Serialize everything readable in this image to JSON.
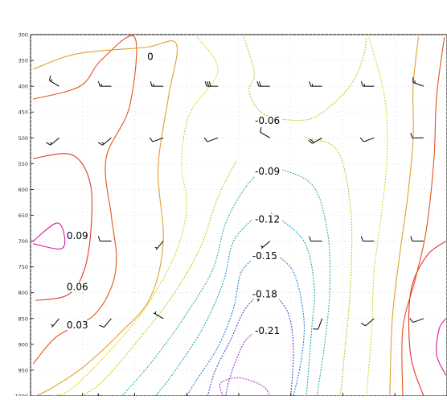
{
  "chart_data": {
    "type": "contour",
    "title": "",
    "xlabel": "",
    "ylabel": "",
    "y_axis": {
      "kind": "pressure",
      "inverted": true,
      "ylim": [
        300,
        1000
      ],
      "ticks": [
        300,
        350,
        400,
        450,
        500,
        550,
        600,
        650,
        700,
        750,
        800,
        850,
        900,
        950,
        1000
      ],
      "tick_labels": [
        "300",
        "350",
        "400",
        "450",
        "500",
        "550",
        "600",
        "650",
        "700",
        "750",
        "800",
        "850",
        "900",
        "950",
        "1000"
      ]
    },
    "x_axis": {
      "ticks": [
        0,
        1,
        2,
        3,
        4,
        5,
        6,
        7,
        8
      ],
      "tick_labels": [
        "",
        "",
        "",
        "",
        "",
        "",
        "",
        "",
        ""
      ]
    },
    "grid": "dotted",
    "contour_labels": [
      {
        "text": "0",
        "x": 2.3,
        "y": 343
      },
      {
        "text": "-0.06",
        "x": 4.55,
        "y": 467
      },
      {
        "text": "-0.09",
        "x": 4.55,
        "y": 565
      },
      {
        "text": "-0.12",
        "x": 4.55,
        "y": 658
      },
      {
        "text": "-0.15",
        "x": 4.5,
        "y": 729
      },
      {
        "text": "-0.18",
        "x": 4.5,
        "y": 803
      },
      {
        "text": "-0.21",
        "x": 4.55,
        "y": 874
      },
      {
        "text": "0.09",
        "x": 0.9,
        "y": 690
      },
      {
        "text": "0.06",
        "x": 0.9,
        "y": 789
      },
      {
        "text": "0.03",
        "x": 0.9,
        "y": 863
      }
    ],
    "contours": [
      {
        "level": 0.09,
        "color": "#d8189c",
        "points": [
          [
            0.05,
            700
          ],
          [
            0.5,
            665
          ],
          [
            0.65,
            690
          ],
          [
            0.58,
            715
          ],
          [
            0.05,
            705
          ]
        ]
      },
      {
        "level": 0.06,
        "color": "#e03530",
        "points": [
          [
            0.05,
            540
          ],
          [
            0.8,
            533
          ],
          [
            1.15,
            590
          ],
          [
            1.15,
            690
          ],
          [
            1.0,
            765
          ],
          [
            0.7,
            805
          ],
          [
            0.1,
            815
          ]
        ]
      },
      {
        "level": 0.03,
        "color": "#e4531a",
        "points": [
          [
            0.05,
            425
          ],
          [
            0.95,
            400
          ],
          [
            1.35,
            350
          ],
          [
            2.0,
            305
          ],
          [
            1.9,
            440
          ],
          [
            1.45,
            540
          ],
          [
            1.55,
            650
          ],
          [
            1.65,
            730
          ],
          [
            1.55,
            790
          ],
          [
            1.2,
            845
          ],
          [
            0.5,
            885
          ],
          [
            0.05,
            938
          ]
        ]
      },
      {
        "level": 0.0,
        "color": "#e0a030",
        "points": [
          [
            0.05,
            367
          ],
          [
            0.9,
            337
          ],
          [
            2.2,
            325
          ],
          [
            2.8,
            318
          ],
          [
            2.65,
            420
          ],
          [
            2.45,
            560
          ],
          [
            2.55,
            700
          ],
          [
            2.3,
            810
          ],
          [
            1.7,
            880
          ],
          [
            1.0,
            945
          ],
          [
            0.4,
            985
          ],
          [
            0.1,
            1000
          ]
        ]
      },
      {
        "level": -0.03,
        "color": "#d8d628",
        "points": [
          [
            3.2,
            305
          ],
          [
            3.6,
            370
          ],
          [
            3.05,
            455
          ],
          [
            2.9,
            550
          ],
          [
            3.0,
            630
          ],
          [
            2.8,
            720
          ],
          [
            2.2,
            830
          ],
          [
            1.5,
            915
          ],
          [
            0.8,
            985
          ],
          [
            0.45,
            1000
          ]
        ]
      },
      {
        "level": -0.06,
        "color": "#a8d620",
        "points": [
          [
            4.1,
            305
          ],
          [
            4.3,
            375
          ],
          [
            4.2,
            410
          ],
          [
            4.5,
            455
          ],
          [
            5.3,
            465
          ],
          [
            5.8,
            435
          ],
          [
            6.2,
            390
          ],
          [
            6.4,
            340
          ],
          [
            6.45,
            305
          ]
        ]
      },
      {
        "level": -0.06,
        "color": "#a8d620",
        "points": [
          [
            3.95,
            545
          ],
          [
            3.6,
            615
          ],
          [
            3.25,
            715
          ],
          [
            2.7,
            810
          ],
          [
            2.0,
            900
          ],
          [
            1.4,
            970
          ],
          [
            1.0,
            1000
          ]
        ]
      },
      {
        "level": -0.09,
        "color": "#3ab088",
        "points": [
          [
            4.45,
            560
          ],
          [
            4.1,
            600
          ],
          [
            3.75,
            665
          ],
          [
            3.5,
            755
          ],
          [
            3.0,
            840
          ],
          [
            2.4,
            925
          ],
          [
            1.8,
            995
          ],
          [
            1.7,
            1000
          ]
        ]
      },
      {
        "level": -0.12,
        "color": "#1ca6b4",
        "points": [
          [
            4.35,
            650
          ],
          [
            3.9,
            700
          ],
          [
            3.7,
            780
          ],
          [
            3.3,
            870
          ],
          [
            2.75,
            955
          ],
          [
            2.4,
            1000
          ]
        ]
      },
      {
        "level": -0.15,
        "color": "#2a7ed0",
        "points": [
          [
            4.4,
            725
          ],
          [
            4.05,
            760
          ],
          [
            3.9,
            830
          ],
          [
            3.6,
            905
          ],
          [
            3.15,
            975
          ],
          [
            3.0,
            1000
          ]
        ]
      },
      {
        "level": -0.18,
        "color": "#5a44c8",
        "points": [
          [
            4.4,
            800
          ],
          [
            4.1,
            835
          ],
          [
            3.85,
            890
          ],
          [
            3.55,
            950
          ],
          [
            3.4,
            1000
          ]
        ]
      },
      {
        "level": -0.21,
        "color": "#8a34c8",
        "points": [
          [
            4.42,
            872
          ],
          [
            4.15,
            890
          ],
          [
            3.95,
            930
          ],
          [
            3.8,
            975
          ],
          [
            3.75,
            1000
          ]
        ]
      },
      {
        "level": -0.24,
        "color": "#b42cc0",
        "points": [
          [
            3.7,
            1000
          ],
          [
            3.65,
            975
          ],
          [
            4.0,
            965
          ],
          [
            4.45,
            980
          ],
          [
            4.6,
            1000
          ]
        ]
      },
      {
        "level": -0.18,
        "color": "#5a44c8",
        "points": [
          [
            4.62,
            795
          ],
          [
            4.95,
            840
          ],
          [
            5.05,
            910
          ],
          [
            5.0,
            1000
          ]
        ]
      },
      {
        "level": -0.15,
        "color": "#2a7ed0",
        "points": [
          [
            4.62,
            720
          ],
          [
            5.05,
            760
          ],
          [
            5.25,
            850
          ],
          [
            5.2,
            930
          ],
          [
            5.05,
            1000
          ]
        ]
      },
      {
        "level": -0.12,
        "color": "#1ca6b4",
        "points": [
          [
            4.62,
            645
          ],
          [
            5.25,
            700
          ],
          [
            5.45,
            790
          ],
          [
            5.4,
            870
          ],
          [
            5.3,
            1000
          ]
        ]
      },
      {
        "level": -0.09,
        "color": "#3ab088",
        "points": [
          [
            4.62,
            555
          ],
          [
            5.4,
            590
          ],
          [
            5.7,
            680
          ],
          [
            5.75,
            790
          ],
          [
            5.65,
            900
          ],
          [
            5.5,
            1000
          ]
        ]
      },
      {
        "level": -0.06,
        "color": "#a8d620",
        "points": [
          [
            5.3,
            500
          ],
          [
            5.9,
            525
          ],
          [
            6.15,
            640
          ],
          [
            6.15,
            780
          ],
          [
            6.05,
            900
          ],
          [
            5.95,
            1000
          ]
        ]
      },
      {
        "level": -0.03,
        "color": "#d8d628",
        "points": [
          [
            6.5,
            305
          ],
          [
            6.8,
            420
          ],
          [
            6.85,
            530
          ],
          [
            6.75,
            640
          ],
          [
            6.6,
            760
          ],
          [
            6.55,
            880
          ],
          [
            6.45,
            1000
          ]
        ]
      },
      {
        "level": 0.0,
        "color": "#e0a030",
        "points": [
          [
            7.45,
            305
          ],
          [
            7.35,
            400
          ],
          [
            7.35,
            500
          ],
          [
            7.25,
            610
          ],
          [
            7.1,
            720
          ],
          [
            6.95,
            850
          ],
          [
            6.9,
            1000
          ]
        ]
      },
      {
        "level": 0.03,
        "color": "#e4531a",
        "points": [
          [
            7.95,
            305
          ],
          [
            7.8,
            420
          ],
          [
            7.75,
            540
          ],
          [
            7.6,
            680
          ],
          [
            7.4,
            770
          ],
          [
            7.15,
            870
          ],
          [
            7.15,
            1000
          ]
        ]
      },
      {
        "level": 0.06,
        "color": "#e03530",
        "points": [
          [
            7.98,
            700
          ],
          [
            7.6,
            730
          ],
          [
            7.3,
            800
          ],
          [
            7.3,
            920
          ],
          [
            7.55,
            1000
          ]
        ]
      },
      {
        "level": 0.09,
        "color": "#d8189c",
        "points": [
          [
            7.98,
            850
          ],
          [
            7.85,
            870
          ],
          [
            7.8,
            920
          ],
          [
            7.98,
            960
          ]
        ]
      }
    ],
    "wind_barbs": [
      {
        "x": 0.55,
        "y": 400,
        "dir": 300,
        "speed": 15
      },
      {
        "x": 1.55,
        "y": 400,
        "dir": 270,
        "speed": 15
      },
      {
        "x": 2.55,
        "y": 400,
        "dir": 270,
        "speed": 15
      },
      {
        "x": 3.6,
        "y": 400,
        "dir": 270,
        "speed": 30
      },
      {
        "x": 4.6,
        "y": 400,
        "dir": 270,
        "speed": 20
      },
      {
        "x": 5.6,
        "y": 400,
        "dir": 270,
        "speed": 15
      },
      {
        "x": 6.6,
        "y": 400,
        "dir": 270,
        "speed": 15
      },
      {
        "x": 7.55,
        "y": 400,
        "dir": 290,
        "speed": 15
      },
      {
        "x": 0.55,
        "y": 500,
        "dir": 230,
        "speed": 15
      },
      {
        "x": 1.55,
        "y": 500,
        "dir": 230,
        "speed": 15
      },
      {
        "x": 2.55,
        "y": 500,
        "dir": 250,
        "speed": 10
      },
      {
        "x": 3.6,
        "y": 500,
        "dir": 250,
        "speed": 10
      },
      {
        "x": 4.6,
        "y": 500,
        "dir": 300,
        "speed": 10
      },
      {
        "x": 5.6,
        "y": 500,
        "dir": 240,
        "speed": 20
      },
      {
        "x": 6.6,
        "y": 500,
        "dir": 250,
        "speed": 10
      },
      {
        "x": 7.55,
        "y": 500,
        "dir": 270,
        "speed": 10
      },
      {
        "x": 1.55,
        "y": 700,
        "dir": 270,
        "speed": 10
      },
      {
        "x": 2.55,
        "y": 700,
        "dir": 220,
        "speed": 5
      },
      {
        "x": 4.6,
        "y": 700,
        "dir": 230,
        "speed": 5
      },
      {
        "x": 5.6,
        "y": 700,
        "dir": 270,
        "speed": 10
      },
      {
        "x": 6.6,
        "y": 700,
        "dir": 270,
        "speed": 10
      },
      {
        "x": 7.55,
        "y": 700,
        "dir": 270,
        "speed": 10
      },
      {
        "x": 0.55,
        "y": 850,
        "dir": 220,
        "speed": 5
      },
      {
        "x": 1.55,
        "y": 850,
        "dir": 220,
        "speed": 10
      },
      {
        "x": 2.55,
        "y": 850,
        "dir": 300,
        "speed": 5
      },
      {
        "x": 4.5,
        "y": 800,
        "dir": 220,
        "speed": 5
      },
      {
        "x": 5.6,
        "y": 850,
        "dir": 200,
        "speed": 10
      },
      {
        "x": 6.6,
        "y": 850,
        "dir": 230,
        "speed": 10
      },
      {
        "x": 7.55,
        "y": 850,
        "dir": 250,
        "speed": 10
      },
      {
        "x": 0.55,
        "y": 1000,
        "dir": 250,
        "speed": 10
      },
      {
        "x": 1.55,
        "y": 1000,
        "dir": 260,
        "speed": 10
      },
      {
        "x": 2.55,
        "y": 1000,
        "dir": 250,
        "speed": 5
      },
      {
        "x": 4.6,
        "y": 1000,
        "dir": 240,
        "speed": 10
      },
      {
        "x": 5.6,
        "y": 1000,
        "dir": 250,
        "speed": 10
      }
    ]
  }
}
